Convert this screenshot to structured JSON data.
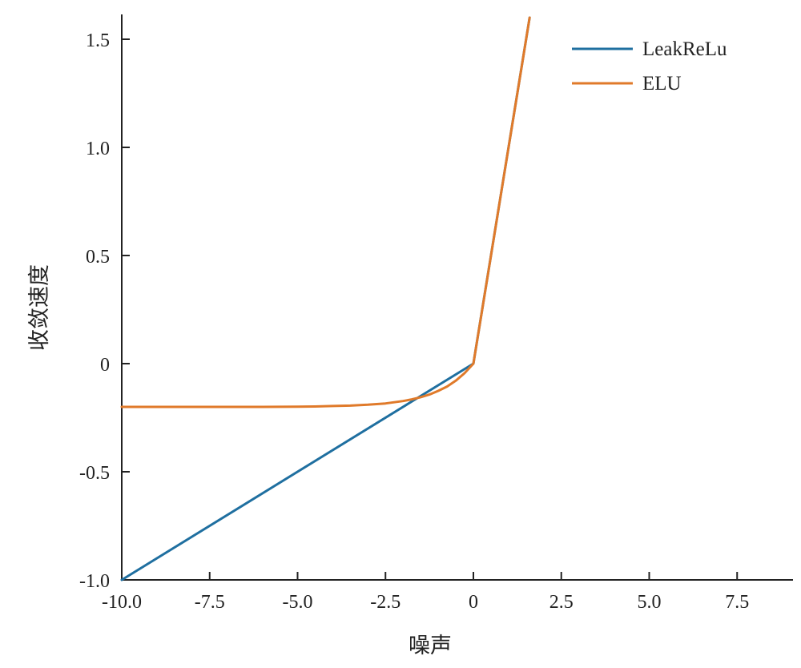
{
  "chart_data": {
    "type": "line",
    "title": "",
    "xlabel": "噪声",
    "ylabel": "收敛速度",
    "xlim": [
      -10,
      9
    ],
    "ylim": [
      -1.0,
      1.6
    ],
    "x_ticks": [
      -10.0,
      -7.5,
      -5.0,
      -2.5,
      0,
      2.5,
      5.0,
      7.5
    ],
    "x_tick_labels": [
      "-10.0",
      "-7.5",
      "-5.0",
      "-2.5",
      "0",
      "2.5",
      "5.0",
      "7.5"
    ],
    "y_ticks": [
      -1.0,
      -0.5,
      0,
      0.5,
      1.0,
      1.5
    ],
    "y_tick_labels": [
      "-1.0",
      "-0.5",
      "0",
      "0.5",
      "1.0",
      "1.5"
    ],
    "grid": false,
    "legend_position": "top-right",
    "series": [
      {
        "name": "LeakReLu",
        "color": "#1f6fa0",
        "x": [
          -10.0,
          0.0,
          1.6
        ],
        "y": [
          -1.0,
          0.0,
          1.6
        ]
      },
      {
        "name": "ELU",
        "color": "#e07a2a",
        "x": [
          -10.0,
          -9.0,
          -8.0,
          -7.0,
          -6.0,
          -5.0,
          -4.5,
          -4.0,
          -3.5,
          -3.0,
          -2.5,
          -2.0,
          -1.75,
          -1.5,
          -1.25,
          -1.0,
          -0.75,
          -0.5,
          -0.25,
          0.0,
          0.4,
          0.8,
          1.2,
          1.6
        ],
        "y": [
          -0.2,
          -0.2,
          -0.2,
          -0.2,
          -0.2,
          -0.199,
          -0.198,
          -0.196,
          -0.194,
          -0.19,
          -0.184,
          -0.173,
          -0.165,
          -0.155,
          -0.143,
          -0.126,
          -0.106,
          -0.079,
          -0.044,
          0.0,
          0.4,
          0.8,
          1.2,
          1.6
        ]
      }
    ]
  }
}
